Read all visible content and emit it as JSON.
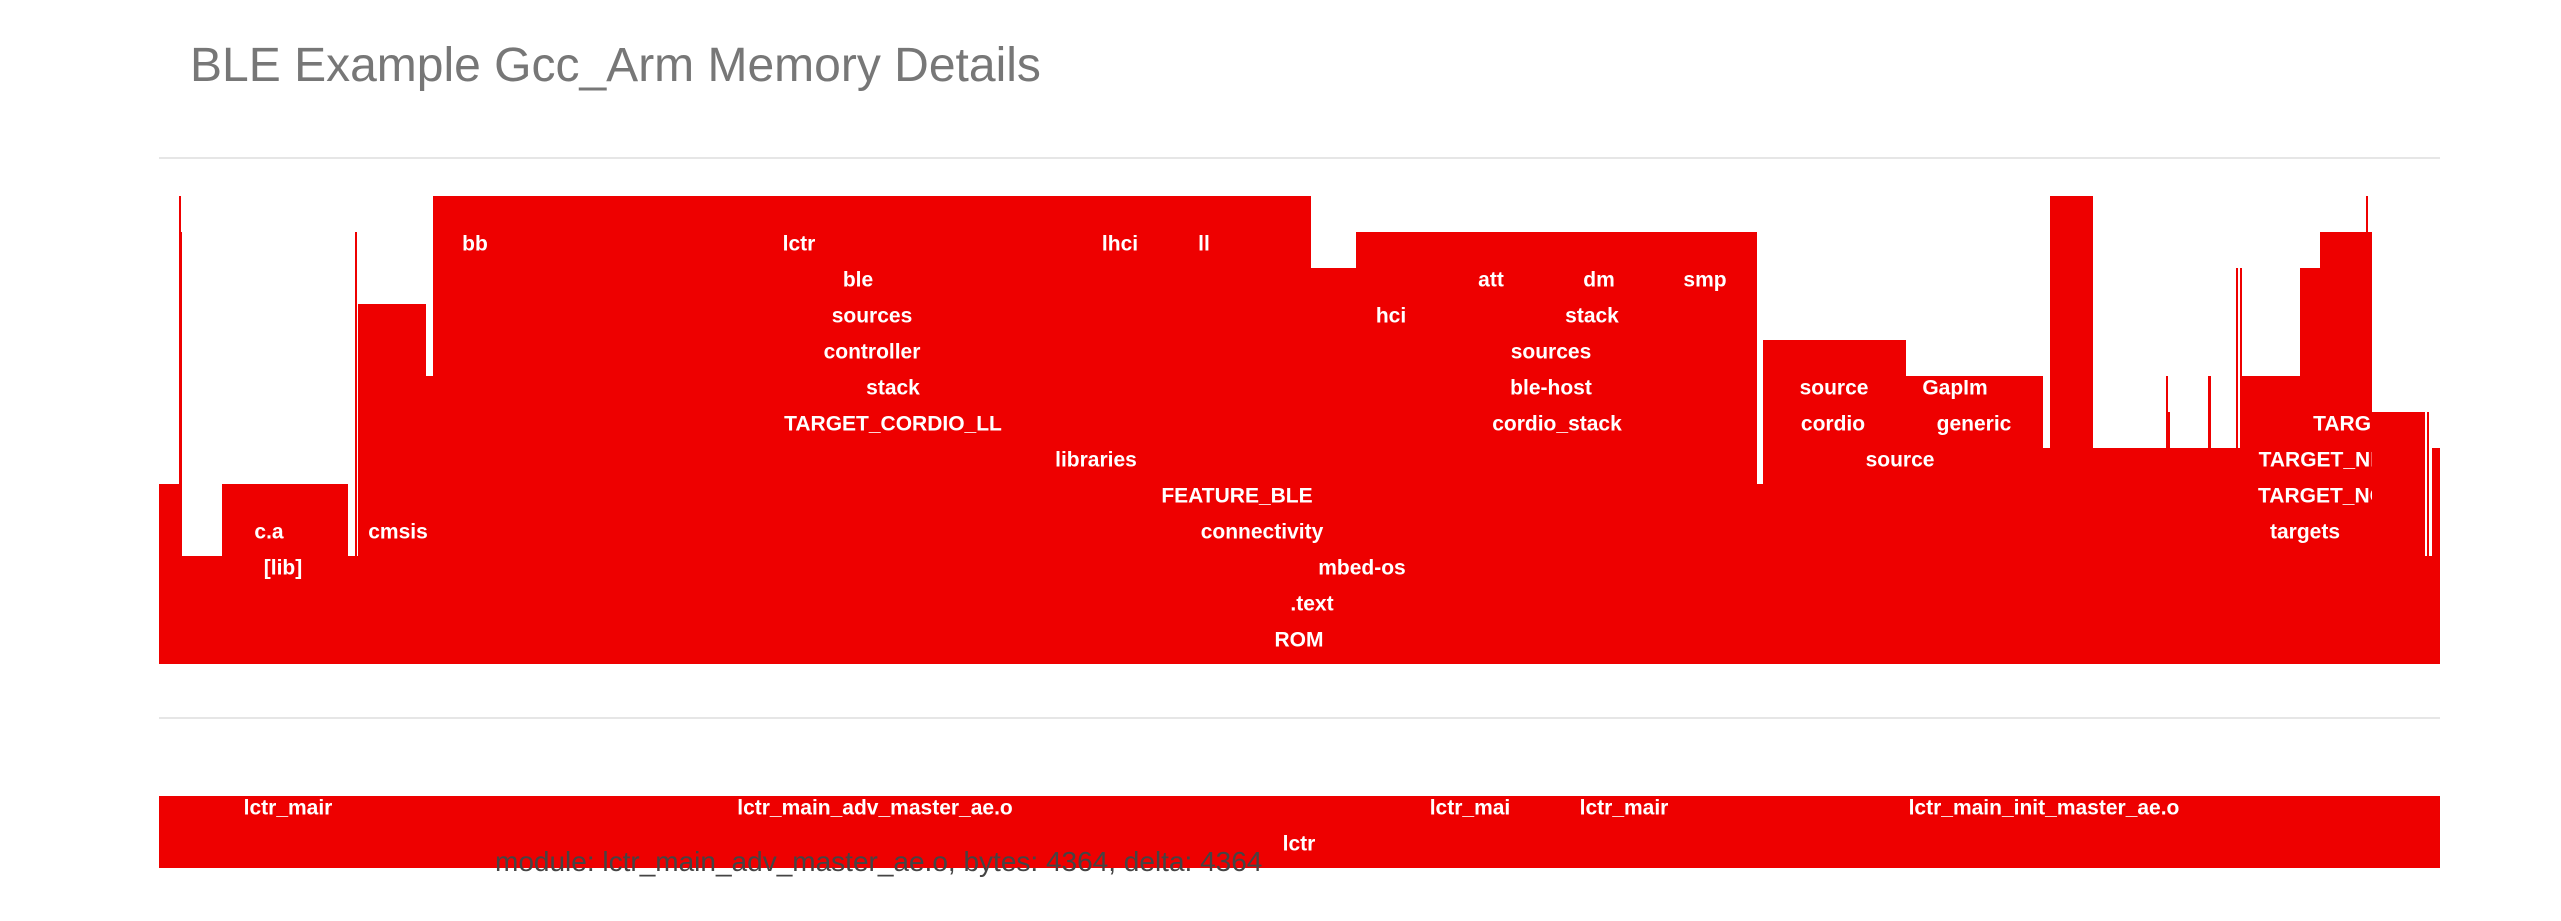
{
  "page": {
    "title": "BLE Example Gcc_Arm Memory Details",
    "tooltip": "module: lctr_main_adv_master_ae.o, bytes: 4364, delta: 4364"
  },
  "colors": {
    "block": "#ee0000",
    "label": "#ffffff",
    "rule": "#e6e6e6",
    "title": "#777777"
  },
  "chart_data": [
    {
      "type": "flame",
      "title": "",
      "unit": "bytes",
      "root": "ROM",
      "hierarchy_labels": [
        {
          "label": "ROM",
          "depth": 0
        },
        {
          "label": ".text",
          "depth": 1
        },
        {
          "label": "mbed-os",
          "depth": 2
        },
        {
          "label": "[lib]",
          "depth": 3
        },
        {
          "label": "connectivity",
          "depth": 3
        },
        {
          "label": "c.a",
          "depth": 4
        },
        {
          "label": "cmsis",
          "depth": 4
        },
        {
          "label": "FEATURE_BLE",
          "depth": 4
        },
        {
          "label": "targets",
          "depth": 4
        },
        {
          "label": "libraries",
          "depth": 5
        },
        {
          "label": "source",
          "depth": 5
        },
        {
          "label": "TARGET_NO",
          "depth": 5
        },
        {
          "label": "TARGET_CORDIO_LL",
          "depth": 6
        },
        {
          "label": "cordio_stack",
          "depth": 6
        },
        {
          "label": "cordio",
          "depth": 6
        },
        {
          "label": "generic",
          "depth": 6
        },
        {
          "label": "TARGET_NR",
          "depth": 6
        },
        {
          "label": "TARGI",
          "depth": 7
        },
        {
          "label": "stack",
          "depth": 7
        },
        {
          "label": "ble-host",
          "depth": 7
        },
        {
          "label": "source",
          "depth": 7
        },
        {
          "label": "GapIm",
          "depth": 7
        },
        {
          "label": "controller",
          "depth": 8
        },
        {
          "label": "sources",
          "depth": 8
        },
        {
          "label": "sources",
          "depth": 9
        },
        {
          "label": "hci",
          "depth": 9
        },
        {
          "label": "stack",
          "depth": 9
        },
        {
          "label": "ble",
          "depth": 10
        },
        {
          "label": "att",
          "depth": 10
        },
        {
          "label": "dm",
          "depth": 10
        },
        {
          "label": "smp",
          "depth": 10
        },
        {
          "label": "bb",
          "depth": 11
        },
        {
          "label": "lctr",
          "depth": 11
        },
        {
          "label": "lhci",
          "depth": 11
        },
        {
          "label": "ll",
          "depth": 11
        }
      ],
      "selected_module": "lctr",
      "selected_module_labels": [
        {
          "label": "lctr",
          "depth": 0
        },
        {
          "label": "lctr_mair",
          "depth": 1
        },
        {
          "label": "lctr_main_adv_master_ae.o",
          "depth": 1
        },
        {
          "label": "lctr_mai",
          "depth": 1
        },
        {
          "label": "lctr_mair",
          "depth": 1
        },
        {
          "label": "lctr_main_init_master_ae.o",
          "depth": 1
        }
      ],
      "hover": {
        "module": "lctr_main_adv_master_ae.o",
        "bytes": 4364,
        "delta": 4364
      }
    }
  ]
}
